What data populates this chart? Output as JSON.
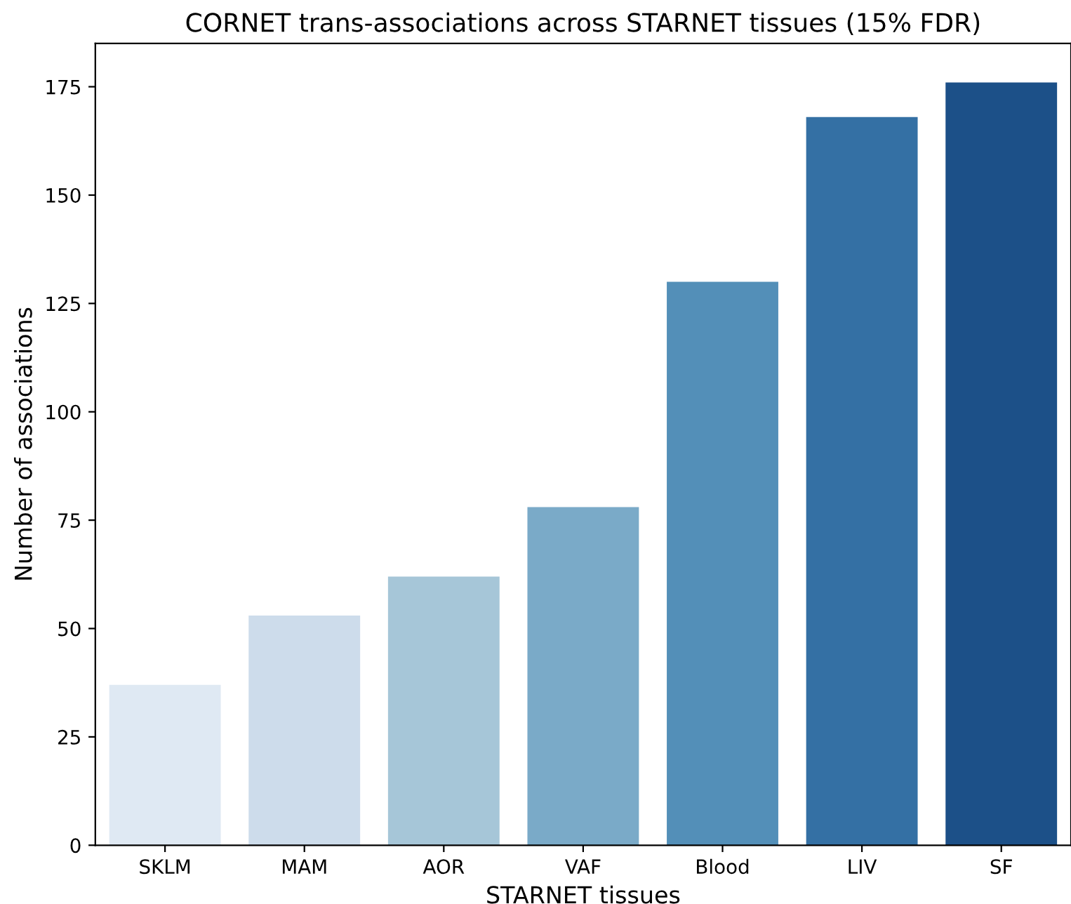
{
  "chart_data": {
    "type": "bar",
    "title": "CORNET trans-associations across STARNET tissues (15% FDR)",
    "xlabel": "STARNET tissues",
    "ylabel": "Number of associations",
    "categories": [
      "SKLM",
      "MAM",
      "AOR",
      "VAF",
      "Blood",
      "LIV",
      "SF"
    ],
    "values": [
      37,
      53,
      62,
      78,
      130,
      168,
      176
    ],
    "colors": [
      "#dfe9f3",
      "#cddceb",
      "#a6c6d8",
      "#7aaac8",
      "#538fb8",
      "#3470a4",
      "#1c5088"
    ],
    "ylim": [
      0,
      185
    ],
    "yticks": [
      0,
      25,
      50,
      75,
      100,
      125,
      150,
      175
    ],
    "grid": false
  }
}
